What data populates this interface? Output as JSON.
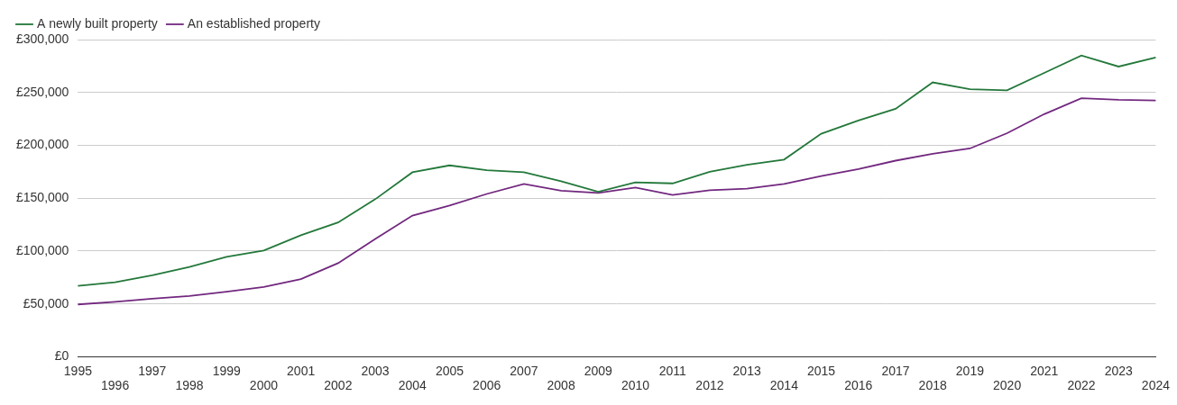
{
  "chart_data": {
    "type": "line",
    "categories": [
      "1995",
      "1996",
      "1997",
      "1998",
      "1999",
      "2000",
      "2001",
      "2002",
      "2003",
      "2004",
      "2005",
      "2006",
      "2007",
      "2008",
      "2009",
      "2010",
      "2011",
      "2012",
      "2013",
      "2014",
      "2015",
      "2016",
      "2017",
      "2018",
      "2019",
      "2020",
      "2021",
      "2022",
      "2023",
      "2024"
    ],
    "series": [
      {
        "name": "A newly built property",
        "color": "#23783a",
        "values": [
          67000,
          70500,
          77000,
          85000,
          94500,
          100500,
          115000,
          127000,
          149000,
          174500,
          181000,
          176500,
          174500,
          166000,
          156000,
          165000,
          164000,
          175000,
          181500,
          186500,
          211000,
          223500,
          234500,
          259500,
          253000,
          252000,
          268500,
          285000,
          274500,
          283000
        ]
      },
      {
        "name": "An established property",
        "color": "#72287f",
        "values": [
          49500,
          52000,
          55000,
          57500,
          61500,
          66000,
          73500,
          88500,
          111500,
          133500,
          143000,
          154000,
          163500,
          157000,
          155000,
          160000,
          153000,
          157500,
          159000,
          163500,
          171000,
          177500,
          185500,
          192000,
          197000,
          211500,
          229500,
          244500,
          243000,
          242500
        ]
      }
    ],
    "ylim": [
      0,
      300000
    ],
    "yticks": [
      {
        "value": 0,
        "label": "£0"
      },
      {
        "value": 50000,
        "label": "£50,000"
      },
      {
        "value": 100000,
        "label": "£100,000"
      },
      {
        "value": 150000,
        "label": "£150,000"
      },
      {
        "value": 200000,
        "label": "£200,000"
      },
      {
        "value": 250000,
        "label": "£250,000"
      },
      {
        "value": 300000,
        "label": "£300,000"
      }
    ],
    "grid": true,
    "legend": "top-left"
  }
}
